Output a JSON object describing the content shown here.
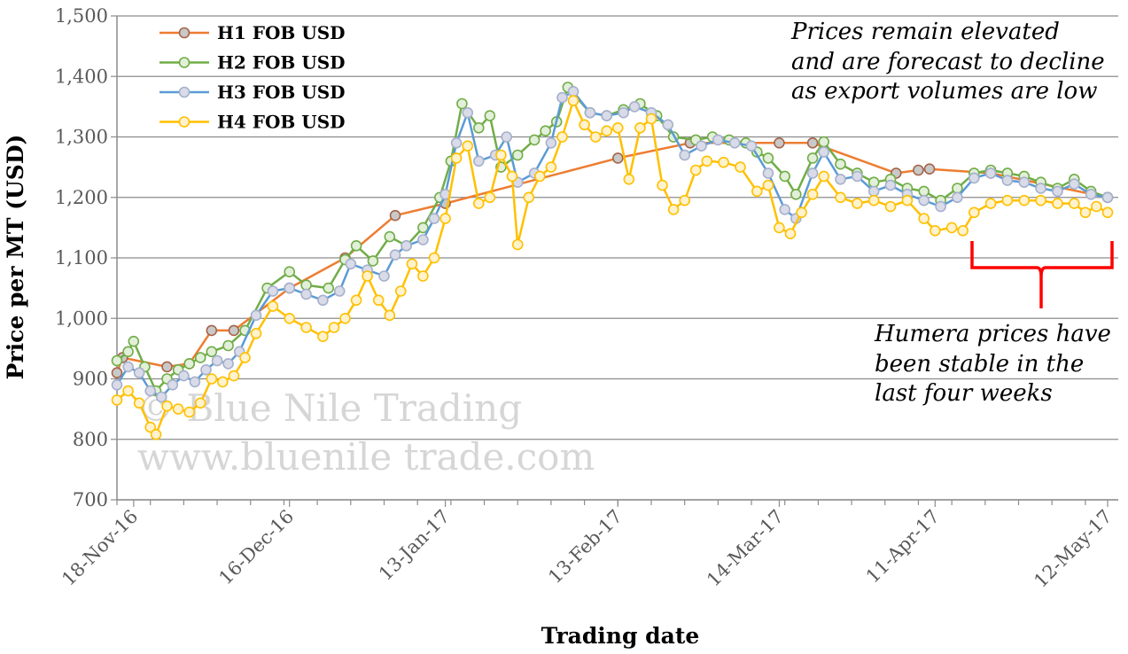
{
  "chart_data": {
    "type": "line",
    "xlabel": "Trading date",
    "ylabel": "Price per MT (USD)",
    "ylim": [
      700,
      1500
    ],
    "yticks": [
      700,
      800,
      900,
      1000,
      1100,
      1200,
      1300,
      1400,
      1500
    ],
    "ytick_labels": [
      "700",
      "800",
      "900",
      "1,000",
      "1,100",
      "1,200",
      "1,300",
      "1,400",
      "1,500"
    ],
    "xlim": [
      "2016-11-15",
      "2017-05-12"
    ],
    "xticks": [
      "2016-11-18",
      "2016-12-16",
      "2017-01-13",
      "2017-02-13",
      "2017-03-14",
      "2017-04-11",
      "2017-05-12"
    ],
    "xtick_labels": [
      "18-Nov-16",
      "16-Dec-16",
      "13-Jan-17",
      "13-Feb-17",
      "14-Mar-17",
      "11-Apr-17",
      "12-May-17"
    ],
    "grid": "horizontal",
    "legend_position": "top-left",
    "series": [
      {
        "name": "H1 FOB USD",
        "color": "#ed7d31",
        "marker_fill": "#c9c9c9",
        "marker_stroke": "#a5654a",
        "points": [
          [
            "2016-11-15",
            910
          ],
          [
            "2016-11-16",
            935
          ],
          [
            "2016-11-24",
            920
          ],
          [
            "2016-11-28",
            925
          ],
          [
            "2016-12-02",
            980
          ],
          [
            "2016-12-06",
            980
          ],
          [
            "2016-12-16",
            1050
          ],
          [
            "2016-12-26",
            1100
          ],
          [
            "2017-01-04",
            1170
          ],
          [
            "2017-01-13",
            1190
          ],
          [
            "2017-02-13",
            1265
          ],
          [
            "2017-02-26",
            1290
          ],
          [
            "2017-03-14",
            1290
          ],
          [
            "2017-03-20",
            1290
          ],
          [
            "2017-04-04",
            1240
          ],
          [
            "2017-04-08",
            1245
          ],
          [
            "2017-04-10",
            1247
          ],
          [
            "2017-04-21",
            1240
          ],
          [
            "2017-05-12",
            1200
          ]
        ]
      },
      {
        "name": "H2 FOB USD",
        "color": "#70ad47",
        "marker_fill": "#e2efd9",
        "marker_stroke": "#70ad47",
        "points": [
          [
            "2016-11-15",
            930
          ],
          [
            "2016-11-17",
            945
          ],
          [
            "2016-11-18",
            962
          ],
          [
            "2016-11-20",
            920
          ],
          [
            "2016-11-22",
            880
          ],
          [
            "2016-11-24",
            900
          ],
          [
            "2016-11-26",
            915
          ],
          [
            "2016-11-28",
            925
          ],
          [
            "2016-11-30",
            935
          ],
          [
            "2016-12-02",
            945
          ],
          [
            "2016-12-05",
            955
          ],
          [
            "2016-12-08",
            980
          ],
          [
            "2016-12-12",
            1050
          ],
          [
            "2016-12-16",
            1077
          ],
          [
            "2016-12-19",
            1055
          ],
          [
            "2016-12-23",
            1050
          ],
          [
            "2016-12-26",
            1097
          ],
          [
            "2016-12-28",
            1120
          ],
          [
            "2016-12-31",
            1095
          ],
          [
            "2017-01-03",
            1135
          ],
          [
            "2017-01-06",
            1120
          ],
          [
            "2017-01-09",
            1150
          ],
          [
            "2017-01-12",
            1200
          ],
          [
            "2017-01-14",
            1260
          ],
          [
            "2017-01-16",
            1355
          ],
          [
            "2017-01-19",
            1315
          ],
          [
            "2017-01-21",
            1335
          ],
          [
            "2017-01-23",
            1250
          ],
          [
            "2017-01-26",
            1270
          ],
          [
            "2017-01-29",
            1295
          ],
          [
            "2017-01-31",
            1310
          ],
          [
            "2017-02-02",
            1325
          ],
          [
            "2017-02-04",
            1382
          ],
          [
            "2017-02-08",
            1340
          ],
          [
            "2017-02-11",
            1335
          ],
          [
            "2017-02-14",
            1345
          ],
          [
            "2017-02-17",
            1355
          ],
          [
            "2017-02-20",
            1335
          ],
          [
            "2017-02-23",
            1300
          ],
          [
            "2017-02-27",
            1295
          ],
          [
            "2017-03-02",
            1300
          ],
          [
            "2017-03-05",
            1295
          ],
          [
            "2017-03-08",
            1290
          ],
          [
            "2017-03-10",
            1275
          ],
          [
            "2017-03-12",
            1265
          ],
          [
            "2017-03-15",
            1235
          ],
          [
            "2017-03-17",
            1205
          ],
          [
            "2017-03-20",
            1265
          ],
          [
            "2017-03-22",
            1292
          ],
          [
            "2017-03-25",
            1255
          ],
          [
            "2017-03-28",
            1240
          ],
          [
            "2017-03-31",
            1225
          ],
          [
            "2017-04-03",
            1230
          ],
          [
            "2017-04-06",
            1215
          ],
          [
            "2017-04-09",
            1210
          ],
          [
            "2017-04-12",
            1195
          ],
          [
            "2017-04-15",
            1215
          ],
          [
            "2017-04-18",
            1240
          ],
          [
            "2017-04-21",
            1245
          ],
          [
            "2017-04-24",
            1240
          ],
          [
            "2017-04-27",
            1235
          ],
          [
            "2017-04-30",
            1225
          ],
          [
            "2017-05-03",
            1215
          ],
          [
            "2017-05-06",
            1230
          ],
          [
            "2017-05-09",
            1210
          ],
          [
            "2017-05-12",
            1200
          ]
        ]
      },
      {
        "name": "H3 FOB USD",
        "color": "#5b9bd5",
        "marker_fill": "#d9dce8",
        "marker_stroke": "#a6b0cc",
        "points": [
          [
            "2016-11-15",
            890
          ],
          [
            "2016-11-17",
            920
          ],
          [
            "2016-11-19",
            910
          ],
          [
            "2016-11-21",
            880
          ],
          [
            "2016-11-23",
            870
          ],
          [
            "2016-11-25",
            890
          ],
          [
            "2016-11-27",
            905
          ],
          [
            "2016-11-29",
            895
          ],
          [
            "2016-12-01",
            915
          ],
          [
            "2016-12-03",
            930
          ],
          [
            "2016-12-05",
            925
          ],
          [
            "2016-12-07",
            945
          ],
          [
            "2016-12-10",
            1005
          ],
          [
            "2016-12-13",
            1045
          ],
          [
            "2016-12-16",
            1050
          ],
          [
            "2016-12-19",
            1040
          ],
          [
            "2016-12-22",
            1030
          ],
          [
            "2016-12-25",
            1045
          ],
          [
            "2016-12-27",
            1090
          ],
          [
            "2016-12-30",
            1080
          ],
          [
            "2017-01-02",
            1070
          ],
          [
            "2017-01-04",
            1105
          ],
          [
            "2017-01-06",
            1120
          ],
          [
            "2017-01-09",
            1130
          ],
          [
            "2017-01-11",
            1165
          ],
          [
            "2017-01-13",
            1205
          ],
          [
            "2017-01-15",
            1290
          ],
          [
            "2017-01-17",
            1340
          ],
          [
            "2017-01-19",
            1260
          ],
          [
            "2017-01-22",
            1270
          ],
          [
            "2017-01-24",
            1300
          ],
          [
            "2017-01-26",
            1225
          ],
          [
            "2017-01-29",
            1240
          ],
          [
            "2017-02-01",
            1290
          ],
          [
            "2017-02-03",
            1365
          ],
          [
            "2017-02-05",
            1375
          ],
          [
            "2017-02-08",
            1340
          ],
          [
            "2017-02-11",
            1335
          ],
          [
            "2017-02-14",
            1340
          ],
          [
            "2017-02-16",
            1350
          ],
          [
            "2017-02-19",
            1340
          ],
          [
            "2017-02-22",
            1320
          ],
          [
            "2017-02-25",
            1270
          ],
          [
            "2017-02-28",
            1285
          ],
          [
            "2017-03-03",
            1295
          ],
          [
            "2017-03-06",
            1290
          ],
          [
            "2017-03-09",
            1285
          ],
          [
            "2017-03-12",
            1240
          ],
          [
            "2017-03-15",
            1180
          ],
          [
            "2017-03-17",
            1165
          ],
          [
            "2017-03-20",
            1240
          ],
          [
            "2017-03-22",
            1275
          ],
          [
            "2017-03-25",
            1230
          ],
          [
            "2017-03-28",
            1235
          ],
          [
            "2017-03-31",
            1210
          ],
          [
            "2017-04-03",
            1220
          ],
          [
            "2017-04-06",
            1205
          ],
          [
            "2017-04-09",
            1195
          ],
          [
            "2017-04-12",
            1185
          ],
          [
            "2017-04-15",
            1200
          ],
          [
            "2017-04-18",
            1232
          ],
          [
            "2017-04-21",
            1240
          ],
          [
            "2017-04-24",
            1228
          ],
          [
            "2017-04-27",
            1225
          ],
          [
            "2017-04-30",
            1215
          ],
          [
            "2017-05-03",
            1210
          ],
          [
            "2017-05-06",
            1222
          ],
          [
            "2017-05-09",
            1205
          ],
          [
            "2017-05-12",
            1200
          ]
        ]
      },
      {
        "name": "H4 FOB USD",
        "color": "#ffc000",
        "marker_fill": "#fff2cc",
        "marker_stroke": "#ffc000",
        "points": [
          [
            "2016-11-15",
            865
          ],
          [
            "2016-11-17",
            880
          ],
          [
            "2016-11-19",
            860
          ],
          [
            "2016-11-21",
            820
          ],
          [
            "2016-11-22",
            808
          ],
          [
            "2016-11-24",
            855
          ],
          [
            "2016-11-26",
            850
          ],
          [
            "2016-11-28",
            845
          ],
          [
            "2016-11-30",
            860
          ],
          [
            "2016-12-02",
            900
          ],
          [
            "2016-12-04",
            895
          ],
          [
            "2016-12-06",
            905
          ],
          [
            "2016-12-08",
            935
          ],
          [
            "2016-12-10",
            975
          ],
          [
            "2016-12-13",
            1020
          ],
          [
            "2016-12-16",
            1000
          ],
          [
            "2016-12-19",
            985
          ],
          [
            "2016-12-22",
            970
          ],
          [
            "2016-12-24",
            985
          ],
          [
            "2016-12-26",
            1000
          ],
          [
            "2016-12-28",
            1030
          ],
          [
            "2016-12-30",
            1070
          ],
          [
            "2017-01-01",
            1030
          ],
          [
            "2017-01-03",
            1005
          ],
          [
            "2017-01-05",
            1045
          ],
          [
            "2017-01-07",
            1090
          ],
          [
            "2017-01-09",
            1070
          ],
          [
            "2017-01-11",
            1100
          ],
          [
            "2017-01-13",
            1165
          ],
          [
            "2017-01-15",
            1265
          ],
          [
            "2017-01-17",
            1285
          ],
          [
            "2017-01-19",
            1190
          ],
          [
            "2017-01-21",
            1200
          ],
          [
            "2017-01-23",
            1270
          ],
          [
            "2017-01-25",
            1235
          ],
          [
            "2017-01-26",
            1122
          ],
          [
            "2017-01-28",
            1200
          ],
          [
            "2017-01-30",
            1235
          ],
          [
            "2017-02-01",
            1250
          ],
          [
            "2017-02-03",
            1300
          ],
          [
            "2017-02-05",
            1360
          ],
          [
            "2017-02-07",
            1320
          ],
          [
            "2017-02-09",
            1300
          ],
          [
            "2017-02-11",
            1310
          ],
          [
            "2017-02-13",
            1315
          ],
          [
            "2017-02-15",
            1230
          ],
          [
            "2017-02-17",
            1315
          ],
          [
            "2017-02-19",
            1330
          ],
          [
            "2017-02-21",
            1220
          ],
          [
            "2017-02-23",
            1180
          ],
          [
            "2017-02-25",
            1195
          ],
          [
            "2017-02-27",
            1245
          ],
          [
            "2017-03-01",
            1260
          ],
          [
            "2017-03-04",
            1258
          ],
          [
            "2017-03-07",
            1250
          ],
          [
            "2017-03-10",
            1210
          ],
          [
            "2017-03-12",
            1220
          ],
          [
            "2017-03-14",
            1150
          ],
          [
            "2017-03-16",
            1140
          ],
          [
            "2017-03-18",
            1175
          ],
          [
            "2017-03-20",
            1205
          ],
          [
            "2017-03-22",
            1235
          ],
          [
            "2017-03-25",
            1200
          ],
          [
            "2017-03-28",
            1190
          ],
          [
            "2017-03-31",
            1195
          ],
          [
            "2017-04-03",
            1185
          ],
          [
            "2017-04-06",
            1195
          ],
          [
            "2017-04-09",
            1165
          ],
          [
            "2017-04-11",
            1145
          ],
          [
            "2017-04-14",
            1150
          ],
          [
            "2017-04-16",
            1145
          ],
          [
            "2017-04-18",
            1175
          ],
          [
            "2017-04-21",
            1190
          ],
          [
            "2017-04-24",
            1195
          ],
          [
            "2017-04-27",
            1195
          ],
          [
            "2017-04-30",
            1195
          ],
          [
            "2017-05-03",
            1190
          ],
          [
            "2017-05-06",
            1190
          ],
          [
            "2017-05-08",
            1175
          ],
          [
            "2017-05-10",
            1185
          ],
          [
            "2017-05-12",
            1175
          ]
        ]
      }
    ],
    "annotations": [
      {
        "lines": [
          "Prices remain elevated",
          "and are forecast to decline",
          "as export volumes are low"
        ],
        "position": "top-right"
      },
      {
        "lines": [
          "Humera prices have",
          "been stable in the",
          "last four weeks"
        ],
        "position": "right"
      }
    ],
    "brace_color": "#ff0000",
    "watermark": {
      "lines": [
        "© Blue Nile Trading",
        "www.bluenile trade.com"
      ]
    }
  }
}
